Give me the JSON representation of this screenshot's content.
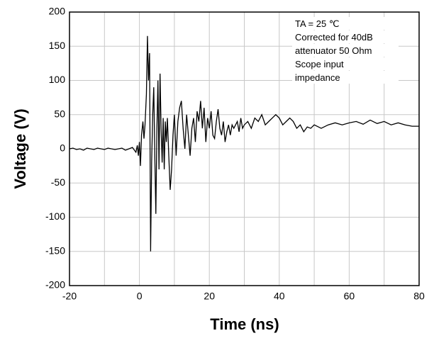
{
  "chart_data": {
    "type": "line",
    "xlabel": "Time  (ns)",
    "ylabel": "Voltage (V)",
    "annotation": [
      "TA = 25 ℃",
      "Corrected for 40dB",
      "attenuator 50 Ohm",
      "Scope input",
      "impedance"
    ],
    "xlim": [
      -20,
      80
    ],
    "ylim": [
      -200,
      200
    ],
    "xticks": [
      -20,
      0,
      20,
      40,
      60,
      80
    ],
    "x_minor_grid": [
      -10,
      10,
      30,
      50,
      70
    ],
    "yticks": [
      -200,
      -150,
      -100,
      -50,
      0,
      50,
      100,
      150,
      200
    ],
    "grid": true,
    "series": [
      {
        "color": "#000000",
        "x": [
          -20,
          -19,
          -18,
          -17,
          -16,
          -15,
          -14,
          -13,
          -12,
          -11,
          -10,
          -9,
          -8,
          -7,
          -6,
          -5,
          -4,
          -3,
          -2,
          -1,
          -0.6,
          -0.3,
          0,
          0.3,
          0.6,
          1,
          1.3,
          1.6,
          2,
          2.3,
          2.6,
          2.9,
          3.2,
          3.5,
          3.8,
          4.1,
          4.4,
          4.7,
          5,
          5.3,
          5.6,
          5.9,
          6.2,
          6.5,
          6.8,
          7.1,
          7.4,
          7.7,
          8,
          8.4,
          8.8,
          9.2,
          9.6,
          10,
          10.5,
          11,
          11.5,
          12,
          12.5,
          13,
          13.5,
          14,
          14.5,
          15,
          15.5,
          16,
          16.5,
          17,
          17.5,
          18,
          18.5,
          19,
          19.5,
          20,
          20.5,
          21,
          21.5,
          22,
          22.5,
          23,
          23.5,
          24,
          24.5,
          25,
          25.5,
          26,
          26.5,
          27,
          28,
          28.5,
          29,
          29.5,
          30,
          31,
          32,
          33,
          34,
          35,
          36,
          37,
          38,
          39,
          40,
          41,
          42,
          43,
          44,
          45,
          46,
          47,
          48,
          49,
          50,
          52,
          54,
          56,
          58,
          60,
          62,
          64,
          66,
          68,
          70,
          72,
          74,
          76,
          78,
          80
        ],
        "values": [
          0,
          1,
          -1,
          0,
          -2,
          1,
          0,
          -1,
          1,
          0,
          -1,
          1,
          0,
          -1,
          0,
          1,
          -2,
          0,
          2,
          -5,
          5,
          -10,
          10,
          -25,
          20,
          40,
          15,
          35,
          80,
          165,
          100,
          140,
          -150,
          -20,
          50,
          90,
          -10,
          -95,
          30,
          100,
          -30,
          110,
          30,
          -20,
          45,
          -30,
          40,
          10,
          45,
          -10,
          -60,
          -30,
          20,
          50,
          -10,
          40,
          60,
          70,
          30,
          0,
          50,
          20,
          -10,
          30,
          45,
          10,
          55,
          40,
          70,
          30,
          60,
          10,
          45,
          30,
          55,
          20,
          15,
          40,
          58,
          30,
          20,
          40,
          10,
          25,
          35,
          20,
          35,
          30,
          40,
          25,
          45,
          30,
          35,
          40,
          30,
          45,
          40,
          50,
          35,
          40,
          45,
          50,
          45,
          35,
          40,
          45,
          40,
          30,
          35,
          25,
          32,
          30,
          35,
          30,
          35,
          38,
          35,
          38,
          40,
          36,
          42,
          37,
          40,
          35,
          38,
          35,
          33,
          33
        ]
      }
    ]
  }
}
